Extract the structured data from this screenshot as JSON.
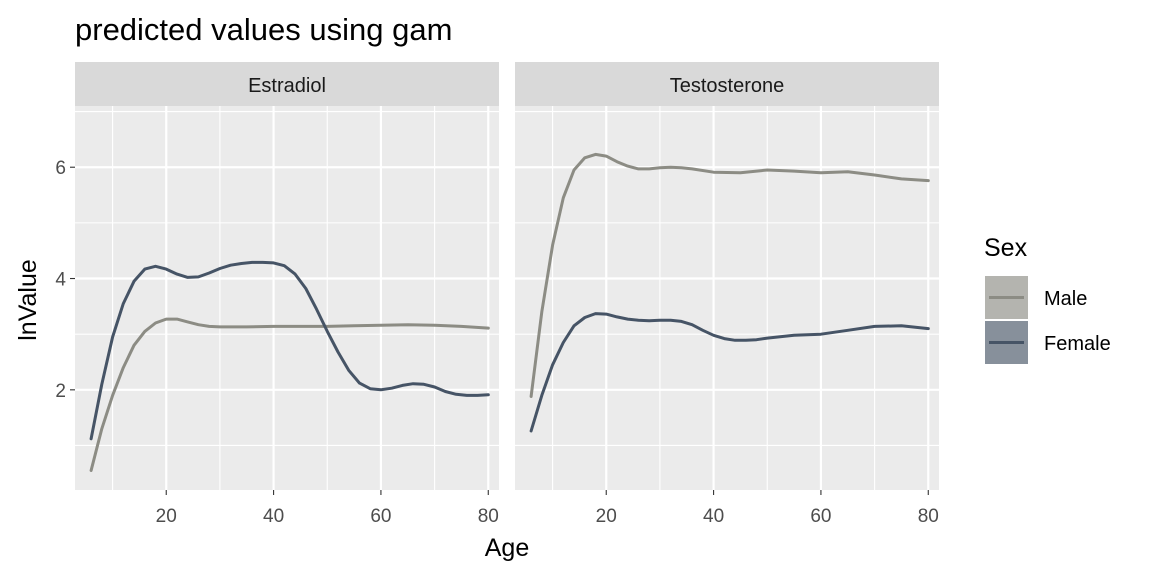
{
  "chart_data": {
    "type": "line",
    "title": "predicted values using gam",
    "xlabel": "Age",
    "ylabel": "lnValue",
    "xlim": [
      3,
      82
    ],
    "ylim": [
      0.2,
      7.1
    ],
    "x_ticks": [
      20,
      40,
      60,
      80
    ],
    "y_ticks": [
      2,
      4,
      6
    ],
    "grid": true,
    "legend_title": "Sex",
    "legend_position": "right",
    "colors": {
      "Male": "#8c8c84",
      "Female": "#465466"
    },
    "panels": [
      {
        "name": "Estradiol",
        "series": [
          {
            "name": "Male",
            "x": [
              6,
              8,
              10,
              12,
              14,
              16,
              18,
              20,
              22,
              24,
              26,
              28,
              30,
              35,
              40,
              45,
              50,
              55,
              60,
              65,
              70,
              75,
              80
            ],
            "y": [
              0.55,
              1.3,
              1.9,
              2.4,
              2.8,
              3.05,
              3.2,
              3.27,
              3.27,
              3.22,
              3.17,
              3.14,
              3.13,
              3.13,
              3.14,
              3.14,
              3.14,
              3.15,
              3.16,
              3.17,
              3.16,
              3.14,
              3.11
            ]
          },
          {
            "name": "Female",
            "x": [
              6,
              8,
              10,
              12,
              14,
              16,
              18,
              20,
              22,
              24,
              26,
              28,
              30,
              32,
              34,
              36,
              38,
              40,
              42,
              44,
              46,
              48,
              50,
              52,
              54,
              56,
              58,
              60,
              62,
              64,
              66,
              68,
              70,
              72,
              74,
              76,
              78,
              80
            ],
            "y": [
              1.12,
              2.1,
              2.95,
              3.55,
              3.95,
              4.17,
              4.22,
              4.17,
              4.08,
              4.02,
              4.03,
              4.1,
              4.18,
              4.24,
              4.27,
              4.29,
              4.29,
              4.28,
              4.23,
              4.08,
              3.82,
              3.45,
              3.05,
              2.68,
              2.35,
              2.12,
              2.02,
              2.0,
              2.03,
              2.08,
              2.11,
              2.1,
              2.05,
              1.97,
              1.92,
              1.9,
              1.9,
              1.91
            ]
          }
        ]
      },
      {
        "name": "Testosterone",
        "series": [
          {
            "name": "Male",
            "x": [
              6,
              8,
              10,
              12,
              14,
              16,
              18,
              20,
              22,
              24,
              26,
              28,
              30,
              32,
              34,
              36,
              40,
              45,
              50,
              55,
              60,
              65,
              70,
              75,
              80
            ],
            "y": [
              1.88,
              3.4,
              4.6,
              5.45,
              5.95,
              6.17,
              6.23,
              6.2,
              6.1,
              6.02,
              5.97,
              5.97,
              5.99,
              6.0,
              5.99,
              5.97,
              5.91,
              5.9,
              5.95,
              5.93,
              5.9,
              5.92,
              5.86,
              5.79,
              5.76
            ]
          },
          {
            "name": "Female",
            "x": [
              6,
              8,
              10,
              12,
              14,
              16,
              18,
              20,
              22,
              24,
              26,
              28,
              30,
              32,
              34,
              36,
              38,
              40,
              42,
              44,
              46,
              48,
              50,
              55,
              60,
              65,
              70,
              75,
              80
            ],
            "y": [
              1.26,
              1.9,
              2.45,
              2.85,
              3.15,
              3.3,
              3.37,
              3.36,
              3.31,
              3.27,
              3.25,
              3.24,
              3.25,
              3.25,
              3.23,
              3.17,
              3.07,
              2.98,
              2.92,
              2.89,
              2.89,
              2.9,
              2.93,
              2.98,
              3.0,
              3.07,
              3.14,
              3.15,
              3.1
            ]
          }
        ]
      }
    ]
  }
}
